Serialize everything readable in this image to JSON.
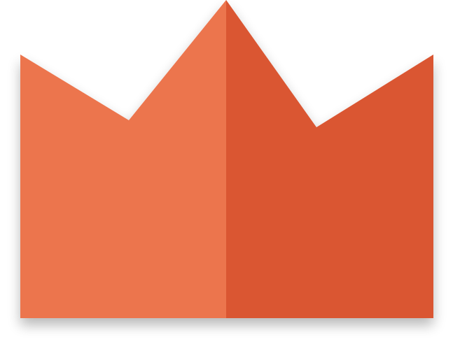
{
  "icon": {
    "name": "crown-icon",
    "colors": {
      "left_half": "#EC744D",
      "right_half": "#DA5632",
      "shadow": "#000000"
    }
  }
}
